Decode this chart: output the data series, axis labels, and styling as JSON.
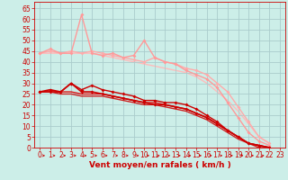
{
  "background_color": "#cceee8",
  "grid_color": "#aacccc",
  "xlabel": "Vent moyen/en rafales ( km/h )",
  "xlabel_color": "#cc0000",
  "xlabel_fontsize": 6.5,
  "tick_color": "#cc0000",
  "tick_fontsize": 5.5,
  "ylim": [
    0,
    68
  ],
  "yticks": [
    0,
    5,
    10,
    15,
    20,
    25,
    30,
    35,
    40,
    45,
    50,
    55,
    60,
    65
  ],
  "xlim": [
    -0.5,
    23.5
  ],
  "xticks": [
    0,
    1,
    2,
    3,
    4,
    5,
    6,
    7,
    8,
    9,
    10,
    11,
    12,
    13,
    14,
    15,
    16,
    17,
    18,
    19,
    20,
    21,
    22,
    23
  ],
  "lines": [
    {
      "x": [
        0,
        1,
        2,
        3,
        4,
        5,
        6,
        7,
        8,
        9,
        10,
        11,
        12,
        13,
        14,
        15,
        16,
        17,
        18,
        19,
        20,
        21,
        22
      ],
      "y": [
        44,
        44,
        44,
        44,
        44,
        44,
        43,
        42,
        41,
        40,
        39,
        38,
        37,
        36,
        35,
        33,
        30,
        26,
        22,
        17,
        11,
        5,
        2
      ],
      "color": "#ffbbbb",
      "lw": 1.0,
      "marker": null,
      "ms": 0,
      "zorder": 1
    },
    {
      "x": [
        0,
        1,
        2,
        3,
        4,
        5,
        6,
        7,
        8,
        9,
        10,
        11,
        12,
        13,
        14,
        15,
        16,
        17,
        18,
        19,
        20,
        21,
        22
      ],
      "y": [
        44,
        45,
        44,
        45,
        44,
        45,
        44,
        43,
        42,
        41,
        40,
        42,
        40,
        39,
        37,
        36,
        34,
        30,
        26,
        19,
        12,
        5,
        2
      ],
      "color": "#ffaaaa",
      "lw": 1.0,
      "marker": "D",
      "ms": 2.0,
      "zorder": 2
    },
    {
      "x": [
        0,
        1,
        2,
        3,
        4,
        5,
        6,
        7,
        8,
        9,
        10,
        11,
        12,
        13,
        14,
        15,
        16,
        17,
        18,
        19,
        20,
        21,
        22
      ],
      "y": [
        44,
        46,
        44,
        44,
        62,
        44,
        43,
        44,
        42,
        43,
        50,
        42,
        40,
        39,
        36,
        34,
        32,
        28,
        21,
        14,
        7,
        3,
        1
      ],
      "color": "#ff9999",
      "lw": 1.0,
      "marker": "D",
      "ms": 2.0,
      "zorder": 3
    },
    {
      "x": [
        0,
        1,
        2,
        3,
        4,
        5,
        6,
        7,
        8,
        9,
        10,
        11,
        12,
        13,
        14,
        15,
        16,
        17,
        18,
        19,
        20,
        21,
        22
      ],
      "y": [
        26,
        26,
        25,
        25,
        24,
        24,
        24,
        23,
        22,
        21,
        20,
        20,
        19,
        18,
        17,
        15,
        13,
        10,
        7,
        4,
        2,
        0,
        0
      ],
      "color": "#cc2222",
      "lw": 1.0,
      "marker": null,
      "ms": 0,
      "zorder": 4
    },
    {
      "x": [
        0,
        1,
        2,
        3,
        4,
        5,
        6,
        7,
        8,
        9,
        10,
        11,
        12,
        13,
        14,
        15,
        16,
        17,
        18,
        19,
        20,
        21,
        22
      ],
      "y": [
        26,
        26,
        26,
        26,
        25,
        25,
        25,
        24,
        23,
        22,
        21,
        21,
        20,
        19,
        18,
        16,
        14,
        11,
        8,
        5,
        2,
        1,
        0
      ],
      "color": "#dd1111",
      "lw": 1.0,
      "marker": null,
      "ms": 0,
      "zorder": 5
    },
    {
      "x": [
        0,
        1,
        2,
        3,
        4,
        5,
        6,
        7,
        8,
        9,
        10,
        11,
        12,
        13,
        14,
        15,
        16,
        17,
        18,
        19,
        20,
        21,
        22
      ],
      "y": [
        26,
        27,
        26,
        30,
        26,
        26,
        25,
        24,
        23,
        22,
        21,
        20,
        20,
        19,
        18,
        16,
        14,
        11,
        8,
        5,
        2,
        1,
        0
      ],
      "color": "#cc0000",
      "lw": 1.2,
      "marker": "D",
      "ms": 2.0,
      "zorder": 6
    },
    {
      "x": [
        0,
        1,
        2,
        3,
        4,
        5,
        6,
        7,
        8,
        9,
        10,
        11,
        12,
        13,
        14,
        15,
        16,
        17,
        18,
        19,
        20,
        21,
        22
      ],
      "y": [
        26,
        26,
        26,
        30,
        27,
        29,
        27,
        26,
        25,
        24,
        22,
        22,
        21,
        21,
        20,
        18,
        15,
        12,
        8,
        5,
        2,
        1,
        0
      ],
      "color": "#cc0000",
      "lw": 1.0,
      "marker": "D",
      "ms": 2.0,
      "zorder": 7
    }
  ],
  "arrow_color": "#cc0000"
}
